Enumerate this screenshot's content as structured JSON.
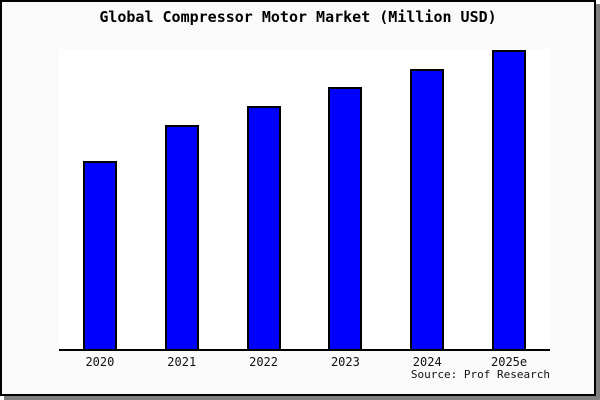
{
  "title": "Global Compressor Motor Market (Million USD)",
  "source_note": "Source: Prof Research",
  "colors": {
    "bar_fill": "#0000ff",
    "bar_border": "#000000",
    "plot_bg": "#ffffff",
    "frame_bg": "#fafafa",
    "frame_border": "#000000",
    "axis": "#000000",
    "shadow": "#808080"
  },
  "chart_data": {
    "type": "bar",
    "title": "Global Compressor Motor Market (Million USD)",
    "categories": [
      "2020",
      "2021",
      "2022",
      "2023",
      "2024",
      "2025e"
    ],
    "values": [
      62.6,
      74.8,
      81.1,
      87.4,
      93.4,
      99.7
    ],
    "xlabel": "",
    "ylabel": "",
    "ylim": [
      0,
      100
    ],
    "grid": false,
    "legend": false,
    "annotations": [
      "Source: Prof Research"
    ]
  }
}
